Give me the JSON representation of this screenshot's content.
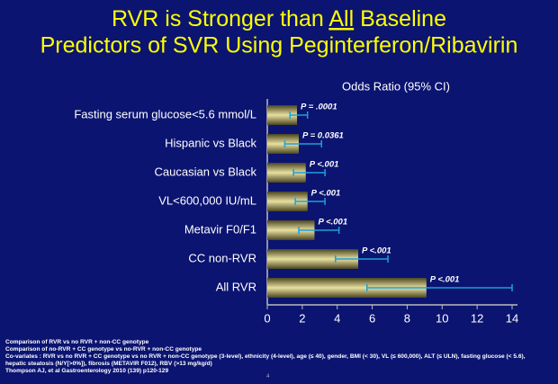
{
  "chart_data": {
    "type": "bar",
    "orientation": "horizontal",
    "title_line1": [
      "RVR is Stronger than ",
      "All",
      " Baseline"
    ],
    "title_line2": "Predictors of SVR Using Peginterferon/Ribavirin",
    "x_label": "Odds Ratio (95% CI)",
    "categories": [
      "Fasting serum glucose<5.6 mmol/L",
      "Hispanic vs Black",
      "Caucasian vs Black",
      "VL<600,000 IU/mL",
      "Metavir F0/F1",
      "CC non-RVR",
      "All RVR"
    ],
    "series": [
      {
        "color": "#e8e0a0",
        "error_color": "#1ea0d8",
        "values": [
          1.7,
          1.8,
          2.2,
          2.3,
          2.7,
          5.2,
          9.1
        ],
        "ci_low": [
          1.3,
          1.0,
          1.5,
          1.6,
          1.8,
          3.9,
          5.7
        ],
        "ci_high": [
          2.3,
          3.1,
          3.3,
          3.3,
          4.1,
          6.9,
          14.0
        ],
        "value_labels": [
          "P = .0001",
          "P = 0.0361",
          "P <.001",
          "P <.001",
          "P <.001",
          "P <.001",
          "P <.001"
        ]
      }
    ],
    "xlim": [
      0,
      14
    ],
    "xticks": [
      0,
      2,
      4,
      6,
      8,
      10,
      12,
      14
    ]
  },
  "footnotes": [
    "Comparison of RVR vs no RVR + non-CC genotype",
    "Comparison of no-RVR + CC genotype vs no-RVR + non-CC genotype",
    "Co-variates : RVR vs no RVR + CC genotype vs no RVR + non-CC genotype (3-level), ethnicity (4-level), age (≤ 40), gender, BMI (< 30), VL (≤ 600,000), ALT (≤ ULN), fasting glucose (< 5.6), hepatic steatosis (N/Y[>0%]), fibrosis (METAVIR F012), RBV (>13 mg/kg/d)",
    "Thompson AJ, et al Gastroenterology 2010 (139) p120-129"
  ],
  "page_number": "4"
}
